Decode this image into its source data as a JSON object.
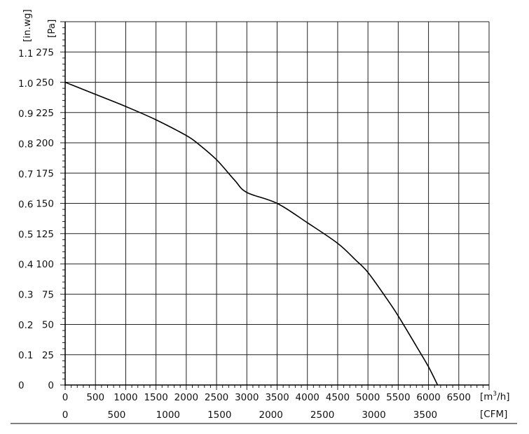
{
  "chart_data": {
    "type": "line",
    "title": "",
    "x_primary": {
      "unit": "[m³/h]",
      "unit_base": "[m",
      "unit_sup": "3",
      "unit_tail": "/h]",
      "range": [
        0,
        7000
      ],
      "ticks": [
        0,
        500,
        1000,
        1500,
        2000,
        2500,
        3000,
        3500,
        4000,
        4500,
        5000,
        5500,
        6000,
        6500
      ],
      "tick_labels": [
        "0",
        "500",
        "1000",
        "1500",
        "2000",
        "2500",
        "3000",
        "3500",
        "4000",
        "4500",
        "5000",
        "5500",
        "6000",
        "6500"
      ]
    },
    "x_secondary": {
      "unit": "[CFM]",
      "ticks": [
        0,
        500,
        1000,
        1500,
        2000,
        2500,
        3000,
        3500
      ],
      "tick_labels": [
        "0",
        "500",
        "1000",
        "1500",
        "2000",
        "2500",
        "3000",
        "3500"
      ]
    },
    "y_primary": {
      "unit": "[Pa]",
      "range": [
        0,
        300
      ],
      "ticks": [
        0,
        25,
        50,
        75,
        100,
        125,
        150,
        175,
        200,
        225,
        250,
        275
      ],
      "tick_labels": [
        "0",
        "25",
        "50",
        "75",
        "100",
        "125",
        "150",
        "175",
        "200",
        "225",
        "250",
        "275"
      ]
    },
    "y_secondary": {
      "unit": "[in.wg]",
      "ticks": [
        0,
        0.1,
        0.2,
        0.3,
        0.4,
        0.5,
        0.6,
        0.7,
        0.8,
        0.9,
        1.0,
        1.1
      ],
      "tick_labels": [
        "0",
        "0.1",
        "0.2",
        "0.3",
        "0.4",
        "0.5",
        "0.6",
        "0.7",
        "0.8",
        "0.9",
        "1.0",
        "1.1"
      ]
    },
    "grid": true,
    "series": [
      {
        "x": [
          0,
          500,
          1000,
          1500,
          2000,
          2200,
          2500,
          2800,
          3000,
          3500,
          4000,
          4500,
          4800,
          5000,
          5300,
          5500,
          5800,
          6000,
          6150
        ],
        "y": [
          250,
          240,
          230,
          219,
          206,
          199,
          186,
          169,
          159,
          150,
          134,
          117,
          103,
          93,
          72,
          57,
          32,
          15,
          0
        ]
      }
    ]
  }
}
